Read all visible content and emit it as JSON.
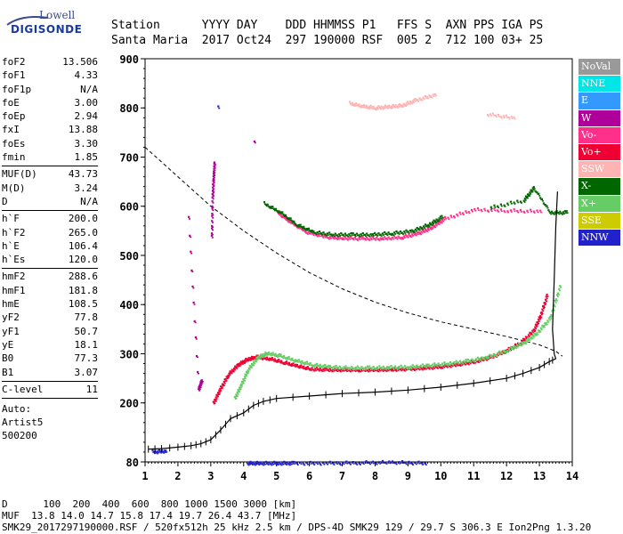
{
  "logo": {
    "line1": "Lowell",
    "line2": "DIGISONDE"
  },
  "header": {
    "line1": "Station      YYYY DAY    DDD HHMMSS P1   FFS S  AXN PPS IGA PS",
    "line2": "Santa Maria  2017 Oct24  297 190000 RSF  005 2  712 100 03+ 25"
  },
  "params": {
    "group1": [
      {
        "k": "foF2",
        "v": "13.506"
      },
      {
        "k": "foF1",
        "v": "4.33"
      },
      {
        "k": "foF1p",
        "v": "N/A"
      },
      {
        "k": "foE",
        "v": "3.00"
      },
      {
        "k": "foEp",
        "v": "2.94"
      },
      {
        "k": "fxI",
        "v": "13.88"
      },
      {
        "k": "foEs",
        "v": "3.30"
      },
      {
        "k": "fmin",
        "v": "1.85"
      }
    ],
    "group2": [
      {
        "k": "MUF(D)",
        "v": "43.73"
      },
      {
        "k": "M(D)",
        "v": "3.24"
      },
      {
        "k": "D",
        "v": "N/A"
      }
    ],
    "group3": [
      {
        "k": "h`F",
        "v": "200.0"
      },
      {
        "k": "h`F2",
        "v": "265.0"
      },
      {
        "k": "h`E",
        "v": "106.4"
      },
      {
        "k": "h`Es",
        "v": "120.0"
      }
    ],
    "group4": [
      {
        "k": "hmF2",
        "v": "288.6"
      },
      {
        "k": "hmF1",
        "v": "181.8"
      },
      {
        "k": "hmE",
        "v": "108.5"
      },
      {
        "k": "yF2",
        "v": "77.8"
      },
      {
        "k": "yF1",
        "v": "50.7"
      },
      {
        "k": "yE",
        "v": "18.1"
      },
      {
        "k": "B0",
        "v": "77.3"
      },
      {
        "k": "B1",
        "v": "3.07"
      }
    ],
    "group5": [
      {
        "k": "C-level",
        "v": "11"
      }
    ],
    "auto": [
      "Auto:",
      "Artist5",
      "500200"
    ]
  },
  "legend": [
    {
      "label": "NoVal",
      "color": "#999999"
    },
    {
      "label": "NNE",
      "color": "#00e5e5"
    },
    {
      "label": "E",
      "color": "#3399ff"
    },
    {
      "label": "W",
      "color": "#b0009a"
    },
    {
      "label": "Vo-",
      "color": "#ff2f8a"
    },
    {
      "label": "Vo+",
      "color": "#ee0033"
    },
    {
      "label": "SSW",
      "color": "#ffb3b3"
    },
    {
      "label": "X-",
      "color": "#006600"
    },
    {
      "label": "X+",
      "color": "#66cc66"
    },
    {
      "label": "SSE",
      "color": "#cccc00"
    },
    {
      "label": "NNW",
      "color": "#2222cc"
    }
  ],
  "footer": {
    "line1": "D      100  200  400  600  800 1000 1500 3000 [km]",
    "line2": "MUF  13.8 14.0 14.7 15.8 17.4 19.7 26.4 43.7 [MHz]",
    "line3": "SMK29_2017297190000.RSF / 520fx512h 25 kHz 2.5 km / DPS-4D SMK29 129 / 29.7 S 306.3 E Ion2Png 1.3.20"
  },
  "chart_data": {
    "type": "scatter",
    "xlim": [
      1,
      14
    ],
    "ylim": [
      80,
      900
    ],
    "x_ticks": [
      "1",
      "2",
      "3",
      "4",
      "5",
      "6",
      "7",
      "8",
      "9",
      "10",
      "11",
      "12",
      "13",
      "14"
    ],
    "y_ticks": [
      "80",
      "200",
      "300",
      "400",
      "500",
      "600",
      "700",
      "800",
      "900"
    ],
    "series": [
      {
        "name": "Vo+",
        "color": "#ee0033",
        "points": [
          [
            3.05,
            202
          ],
          [
            3.25,
            230
          ],
          [
            3.5,
            260
          ],
          [
            3.8,
            280
          ],
          [
            4.1,
            292
          ],
          [
            4.4,
            296
          ],
          [
            4.8,
            292
          ],
          [
            5.2,
            285
          ],
          [
            5.6,
            278
          ],
          [
            6.0,
            272
          ],
          [
            6.5,
            270
          ],
          [
            7.0,
            270
          ],
          [
            7.5,
            270
          ],
          [
            8.0,
            270
          ],
          [
            8.5,
            271
          ],
          [
            9.0,
            272
          ],
          [
            9.5,
            274
          ],
          [
            10.0,
            277
          ],
          [
            10.5,
            281
          ],
          [
            11.0,
            287
          ],
          [
            11.5,
            296
          ],
          [
            12.0,
            310
          ],
          [
            12.4,
            325
          ],
          [
            12.8,
            350
          ],
          [
            13.0,
            380
          ],
          [
            13.2,
            420
          ]
        ]
      },
      {
        "name": "X+",
        "color": "#66cc66",
        "points": [
          [
            3.7,
            212
          ],
          [
            3.9,
            240
          ],
          [
            4.1,
            270
          ],
          [
            4.4,
            295
          ],
          [
            4.7,
            304
          ],
          [
            5.1,
            298
          ],
          [
            5.6,
            288
          ],
          [
            6.1,
            280
          ],
          [
            6.6,
            276
          ],
          [
            7.2,
            274
          ],
          [
            7.8,
            274
          ],
          [
            8.4,
            275
          ],
          [
            9.0,
            276
          ],
          [
            9.6,
            279
          ],
          [
            10.2,
            283
          ],
          [
            10.8,
            288
          ],
          [
            11.4,
            296
          ],
          [
            12.0,
            310
          ],
          [
            12.5,
            325
          ],
          [
            12.9,
            345
          ],
          [
            13.3,
            375
          ],
          [
            13.6,
            440
          ]
        ]
      },
      {
        "name": "Vo-",
        "color": "#ff2f8a",
        "points": [
          [
            5.0,
            590
          ],
          [
            5.4,
            570
          ],
          [
            5.9,
            550
          ],
          [
            6.5,
            540
          ],
          [
            7.0,
            538
          ],
          [
            7.6,
            537
          ],
          [
            8.2,
            537
          ],
          [
            8.8,
            540
          ],
          [
            9.3,
            548
          ],
          [
            9.7,
            560
          ],
          [
            10.1,
            578
          ],
          [
            11.0,
            596
          ],
          [
            12.0,
            594
          ],
          [
            13.0,
            592
          ]
        ]
      },
      {
        "name": "X-",
        "color": "#006600",
        "points": [
          [
            4.6,
            608
          ],
          [
            5.1,
            590
          ],
          [
            5.6,
            565
          ],
          [
            6.1,
            550
          ],
          [
            6.7,
            545
          ],
          [
            7.3,
            545
          ],
          [
            7.9,
            545
          ],
          [
            8.5,
            548
          ],
          [
            9.1,
            552
          ],
          [
            9.6,
            565
          ],
          [
            10.0,
            580
          ],
          [
            11.5,
            600
          ],
          [
            12.5,
            615
          ],
          [
            12.8,
            640
          ],
          [
            13.3,
            590
          ],
          [
            13.8,
            590
          ]
        ]
      },
      {
        "name": "SSW",
        "color": "#ffb3b3",
        "points": [
          [
            7.2,
            812
          ],
          [
            7.6,
            806
          ],
          [
            8.0,
            803
          ],
          [
            8.4,
            805
          ],
          [
            8.8,
            808
          ],
          [
            9.2,
            818
          ],
          [
            9.8,
            830
          ],
          [
            11.4,
            790
          ],
          [
            12.2,
            782
          ]
        ]
      },
      {
        "name": "W",
        "color": "#b0009a",
        "points": [
          [
            3.0,
            540
          ],
          [
            3.02,
            620
          ],
          [
            3.05,
            660
          ],
          [
            3.08,
            690
          ],
          [
            4.3,
            735
          ],
          [
            2.3,
            578
          ],
          [
            2.6,
            230
          ],
          [
            2.7,
            250
          ]
        ]
      },
      {
        "name": "NNW",
        "color": "#2222cc",
        "points": [
          [
            1.2,
            103
          ],
          [
            1.6,
            105
          ],
          [
            4.1,
            80
          ],
          [
            4.5,
            80
          ],
          [
            5.0,
            80
          ],
          [
            5.5,
            80
          ],
          [
            6.5,
            80
          ],
          [
            7.5,
            81
          ],
          [
            8.5,
            82
          ],
          [
            9.5,
            80
          ],
          [
            3.2,
            803
          ]
        ]
      }
    ],
    "profile": {
      "points": [
        [
          1.1,
          106
        ],
        [
          1.5,
          107
        ],
        [
          2.0,
          110
        ],
        [
          2.4,
          113
        ],
        [
          2.7,
          117
        ],
        [
          3.0,
          125
        ],
        [
          3.3,
          145
        ],
        [
          3.6,
          168
        ],
        [
          4.0,
          180
        ],
        [
          4.3,
          195
        ],
        [
          4.6,
          203
        ],
        [
          5.0,
          209
        ],
        [
          6.0,
          214
        ],
        [
          7.0,
          219
        ],
        [
          8.0,
          222
        ],
        [
          9.0,
          226
        ],
        [
          10.0,
          232
        ],
        [
          11.0,
          240
        ],
        [
          12.0,
          250
        ],
        [
          12.5,
          260
        ],
        [
          13.0,
          272
        ],
        [
          13.3,
          284
        ],
        [
          13.5,
          290
        ],
        [
          13.45,
          300
        ],
        [
          13.4,
          350
        ],
        [
          13.45,
          450
        ],
        [
          13.5,
          560
        ],
        [
          13.55,
          630
        ]
      ]
    },
    "muf_curve": {
      "points": [
        [
          1.0,
          720
        ],
        [
          1.5,
          690
        ],
        [
          2.0,
          660
        ],
        [
          2.5,
          630
        ],
        [
          3.0,
          600
        ],
        [
          3.5,
          575
        ],
        [
          4.0,
          550
        ],
        [
          5.0,
          505
        ],
        [
          6.0,
          465
        ],
        [
          7.0,
          432
        ],
        [
          8.0,
          405
        ],
        [
          9.0,
          383
        ],
        [
          10.0,
          365
        ],
        [
          11.0,
          350
        ],
        [
          12.0,
          335
        ],
        [
          13.0,
          318
        ],
        [
          13.5,
          305
        ],
        [
          13.7,
          295
        ]
      ]
    }
  }
}
